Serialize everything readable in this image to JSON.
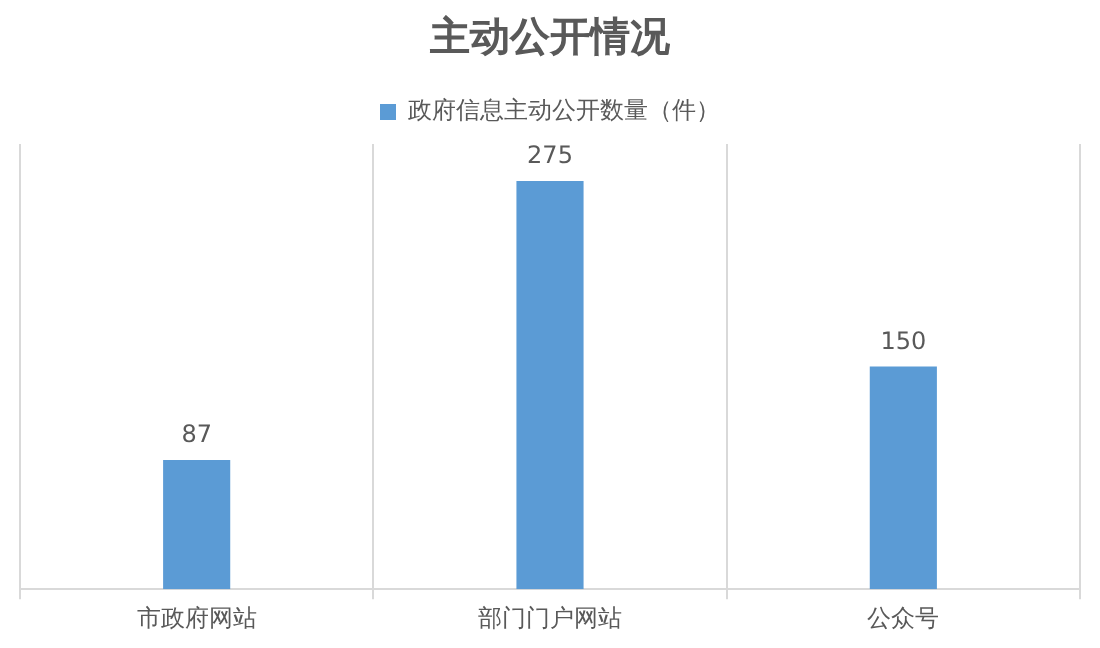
{
  "chart_data": {
    "type": "bar",
    "title": "主动公开情况",
    "categories": [
      "市政府网站",
      "部门门户网站",
      "公众号"
    ],
    "series": [
      {
        "name": "政府信息主动公开数量（件）",
        "color": "#5b9bd5",
        "values": [
          87,
          275,
          150
        ]
      }
    ],
    "data_labels": true,
    "grid": "x",
    "legend": "top",
    "tick_labels": "x"
  }
}
